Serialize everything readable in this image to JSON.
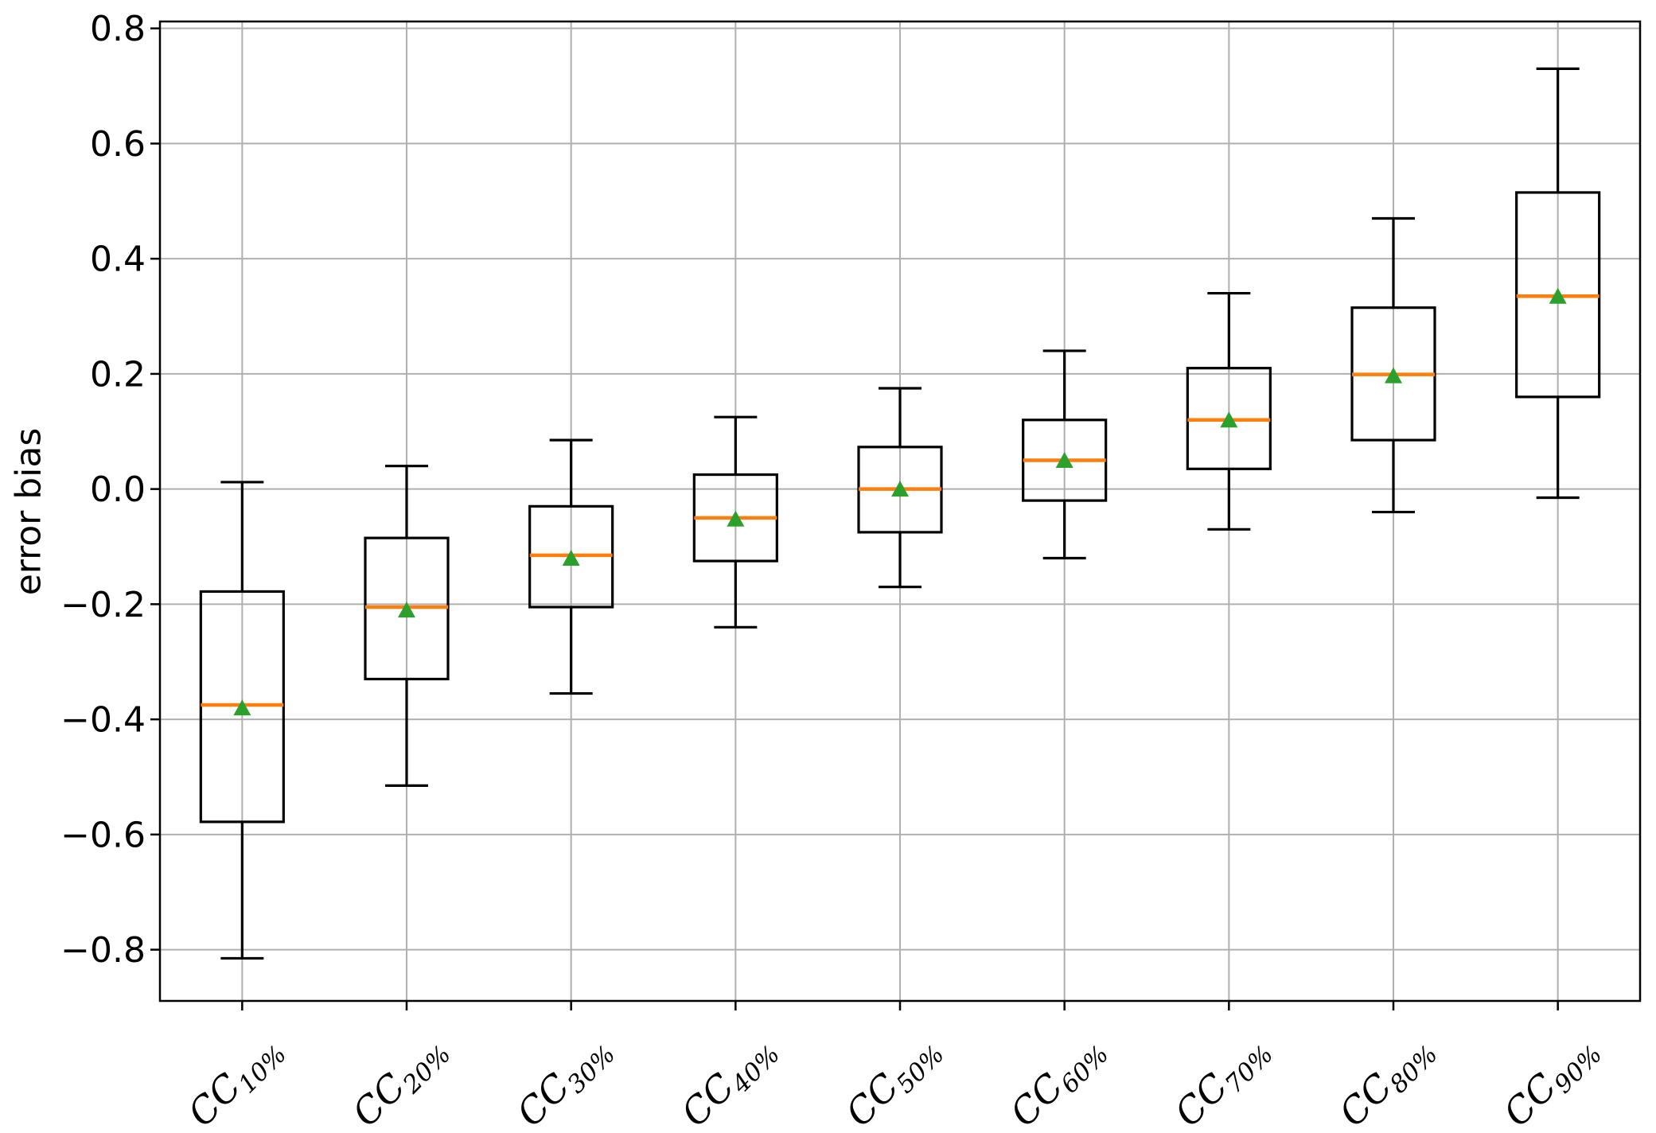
{
  "chart_data": {
    "type": "box",
    "title": "",
    "xlabel": "",
    "ylabel": "error bias",
    "grid": true,
    "legend": null,
    "ylim": [
      -0.889,
      0.812
    ],
    "yticks": [
      {
        "v": 0.8,
        "label": "0.8"
      },
      {
        "v": 0.6,
        "label": "0.6"
      },
      {
        "v": 0.4,
        "label": "0.4"
      },
      {
        "v": 0.2,
        "label": "0.2"
      },
      {
        "v": 0.0,
        "label": "0.0"
      },
      {
        "v": -0.2,
        "label": "−0.2"
      },
      {
        "v": -0.4,
        "label": "−0.4"
      },
      {
        "v": -0.6,
        "label": "−0.6"
      },
      {
        "v": -0.8,
        "label": "−0.8"
      }
    ],
    "categories": [
      {
        "prefix": "CC",
        "sub": "10%"
      },
      {
        "prefix": "CC",
        "sub": "20%"
      },
      {
        "prefix": "CC",
        "sub": "30%"
      },
      {
        "prefix": "CC",
        "sub": "40%"
      },
      {
        "prefix": "CC",
        "sub": "50%"
      },
      {
        "prefix": "CC",
        "sub": "60%"
      },
      {
        "prefix": "CC",
        "sub": "70%"
      },
      {
        "prefix": "CC",
        "sub": "80%"
      },
      {
        "prefix": "CC",
        "sub": "90%"
      }
    ],
    "boxes": [
      {
        "label": "CC10%",
        "whislo": -0.815,
        "q1": -0.578,
        "med": -0.375,
        "mean": -0.38,
        "q3": -0.178,
        "whishi": 0.012
      },
      {
        "label": "CC20%",
        "whislo": -0.515,
        "q1": -0.33,
        "med": -0.205,
        "mean": -0.21,
        "q3": -0.085,
        "whishi": 0.04
      },
      {
        "label": "CC30%",
        "whislo": -0.355,
        "q1": -0.205,
        "med": -0.115,
        "mean": -0.12,
        "q3": -0.03,
        "whishi": 0.085
      },
      {
        "label": "CC40%",
        "whislo": -0.24,
        "q1": -0.125,
        "med": -0.05,
        "mean": -0.052,
        "q3": 0.025,
        "whishi": 0.125
      },
      {
        "label": "CC50%",
        "whislo": -0.17,
        "q1": -0.075,
        "med": 0.0,
        "mean": 0.0,
        "q3": 0.073,
        "whishi": 0.175
      },
      {
        "label": "CC60%",
        "whislo": -0.12,
        "q1": -0.02,
        "med": 0.05,
        "mean": 0.05,
        "q3": 0.12,
        "whishi": 0.24
      },
      {
        "label": "CC70%",
        "whislo": -0.07,
        "q1": 0.035,
        "med": 0.12,
        "mean": 0.12,
        "q3": 0.21,
        "whishi": 0.34
      },
      {
        "label": "CC80%",
        "whislo": -0.04,
        "q1": 0.085,
        "med": 0.199,
        "mean": 0.197,
        "q3": 0.315,
        "whishi": 0.47
      },
      {
        "label": "CC90%",
        "whislo": -0.015,
        "q1": 0.16,
        "med": 0.335,
        "mean": 0.335,
        "q3": 0.515,
        "whishi": 0.73
      }
    ],
    "colors": {
      "median": "#ff7f0e",
      "mean": "#2ca02c",
      "grid": "#b0b0b0",
      "line": "#000000",
      "background": "#ffffff"
    }
  }
}
